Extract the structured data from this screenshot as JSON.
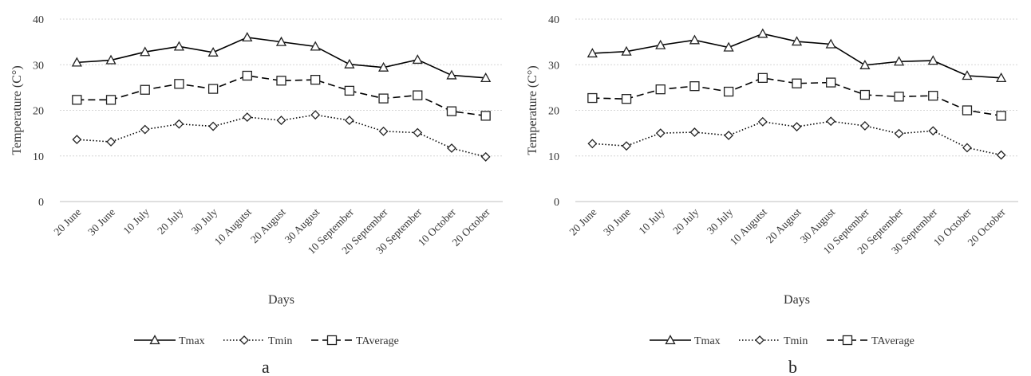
{
  "figure": {
    "panel_labels": [
      "a",
      "b"
    ]
  },
  "chart_data": [
    {
      "type": "line",
      "panel": "a",
      "xlabel": "Days",
      "ylabel": "Temperature (C°)",
      "ylim": [
        0,
        40
      ],
      "yticks": [
        0,
        10,
        20,
        30,
        40
      ],
      "grid": "horizontal",
      "legend": "bottom",
      "categories": [
        "20 June",
        "30 June",
        "10 July",
        "20 July",
        "30 July",
        "10 Augutst",
        "20 August",
        "30 August",
        "10 September",
        "20 September",
        "30 September",
        "10 October",
        "20 October"
      ],
      "series": [
        {
          "name": "Tmax",
          "style": "solid",
          "marker": "triangle",
          "color": "#000000",
          "values": [
            30.5,
            31.0,
            32.8,
            34.0,
            32.7,
            36.0,
            35.0,
            34.0,
            30.1,
            29.4,
            31.1,
            27.7,
            27.1
          ]
        },
        {
          "name": "Tmin",
          "style": "dotted",
          "marker": "diamond",
          "color": "#000000",
          "values": [
            13.6,
            13.1,
            15.8,
            17.0,
            16.5,
            18.5,
            17.8,
            19.0,
            17.8,
            15.4,
            15.1,
            11.7,
            9.8
          ]
        },
        {
          "name": "TAverage",
          "style": "dashed",
          "marker": "square",
          "color": "#000000",
          "values": [
            22.3,
            22.3,
            24.5,
            25.8,
            24.7,
            27.6,
            26.5,
            26.7,
            24.3,
            22.6,
            23.3,
            19.8,
            18.8
          ]
        }
      ]
    },
    {
      "type": "line",
      "panel": "b",
      "xlabel": "Days",
      "ylabel": "Temperature (C°)",
      "ylim": [
        0,
        40
      ],
      "yticks": [
        0,
        10,
        20,
        30,
        40
      ],
      "grid": "horizontal",
      "legend": "bottom",
      "categories": [
        "20 June",
        "30 June",
        "10 July",
        "20 July",
        "30 July",
        "10 Augutst",
        "20 August",
        "30 August",
        "10 September",
        "20 September",
        "30 September",
        "10 October",
        "20 October"
      ],
      "series": [
        {
          "name": "Tmax",
          "style": "solid",
          "marker": "triangle",
          "color": "#000000",
          "values": [
            32.5,
            32.9,
            34.3,
            35.4,
            33.8,
            36.8,
            35.1,
            34.5,
            29.9,
            30.7,
            30.9,
            27.6,
            27.1
          ]
        },
        {
          "name": "Tmin",
          "style": "dotted",
          "marker": "diamond",
          "color": "#000000",
          "values": [
            12.7,
            12.2,
            15.0,
            15.2,
            14.5,
            17.5,
            16.4,
            17.6,
            16.6,
            14.9,
            15.5,
            11.8,
            10.2
          ]
        },
        {
          "name": "TAverage",
          "style": "dashed",
          "marker": "square",
          "color": "#000000",
          "values": [
            22.7,
            22.5,
            24.6,
            25.3,
            24.1,
            27.1,
            25.9,
            26.1,
            23.4,
            23.0,
            23.2,
            20.0,
            18.8
          ]
        }
      ]
    }
  ]
}
